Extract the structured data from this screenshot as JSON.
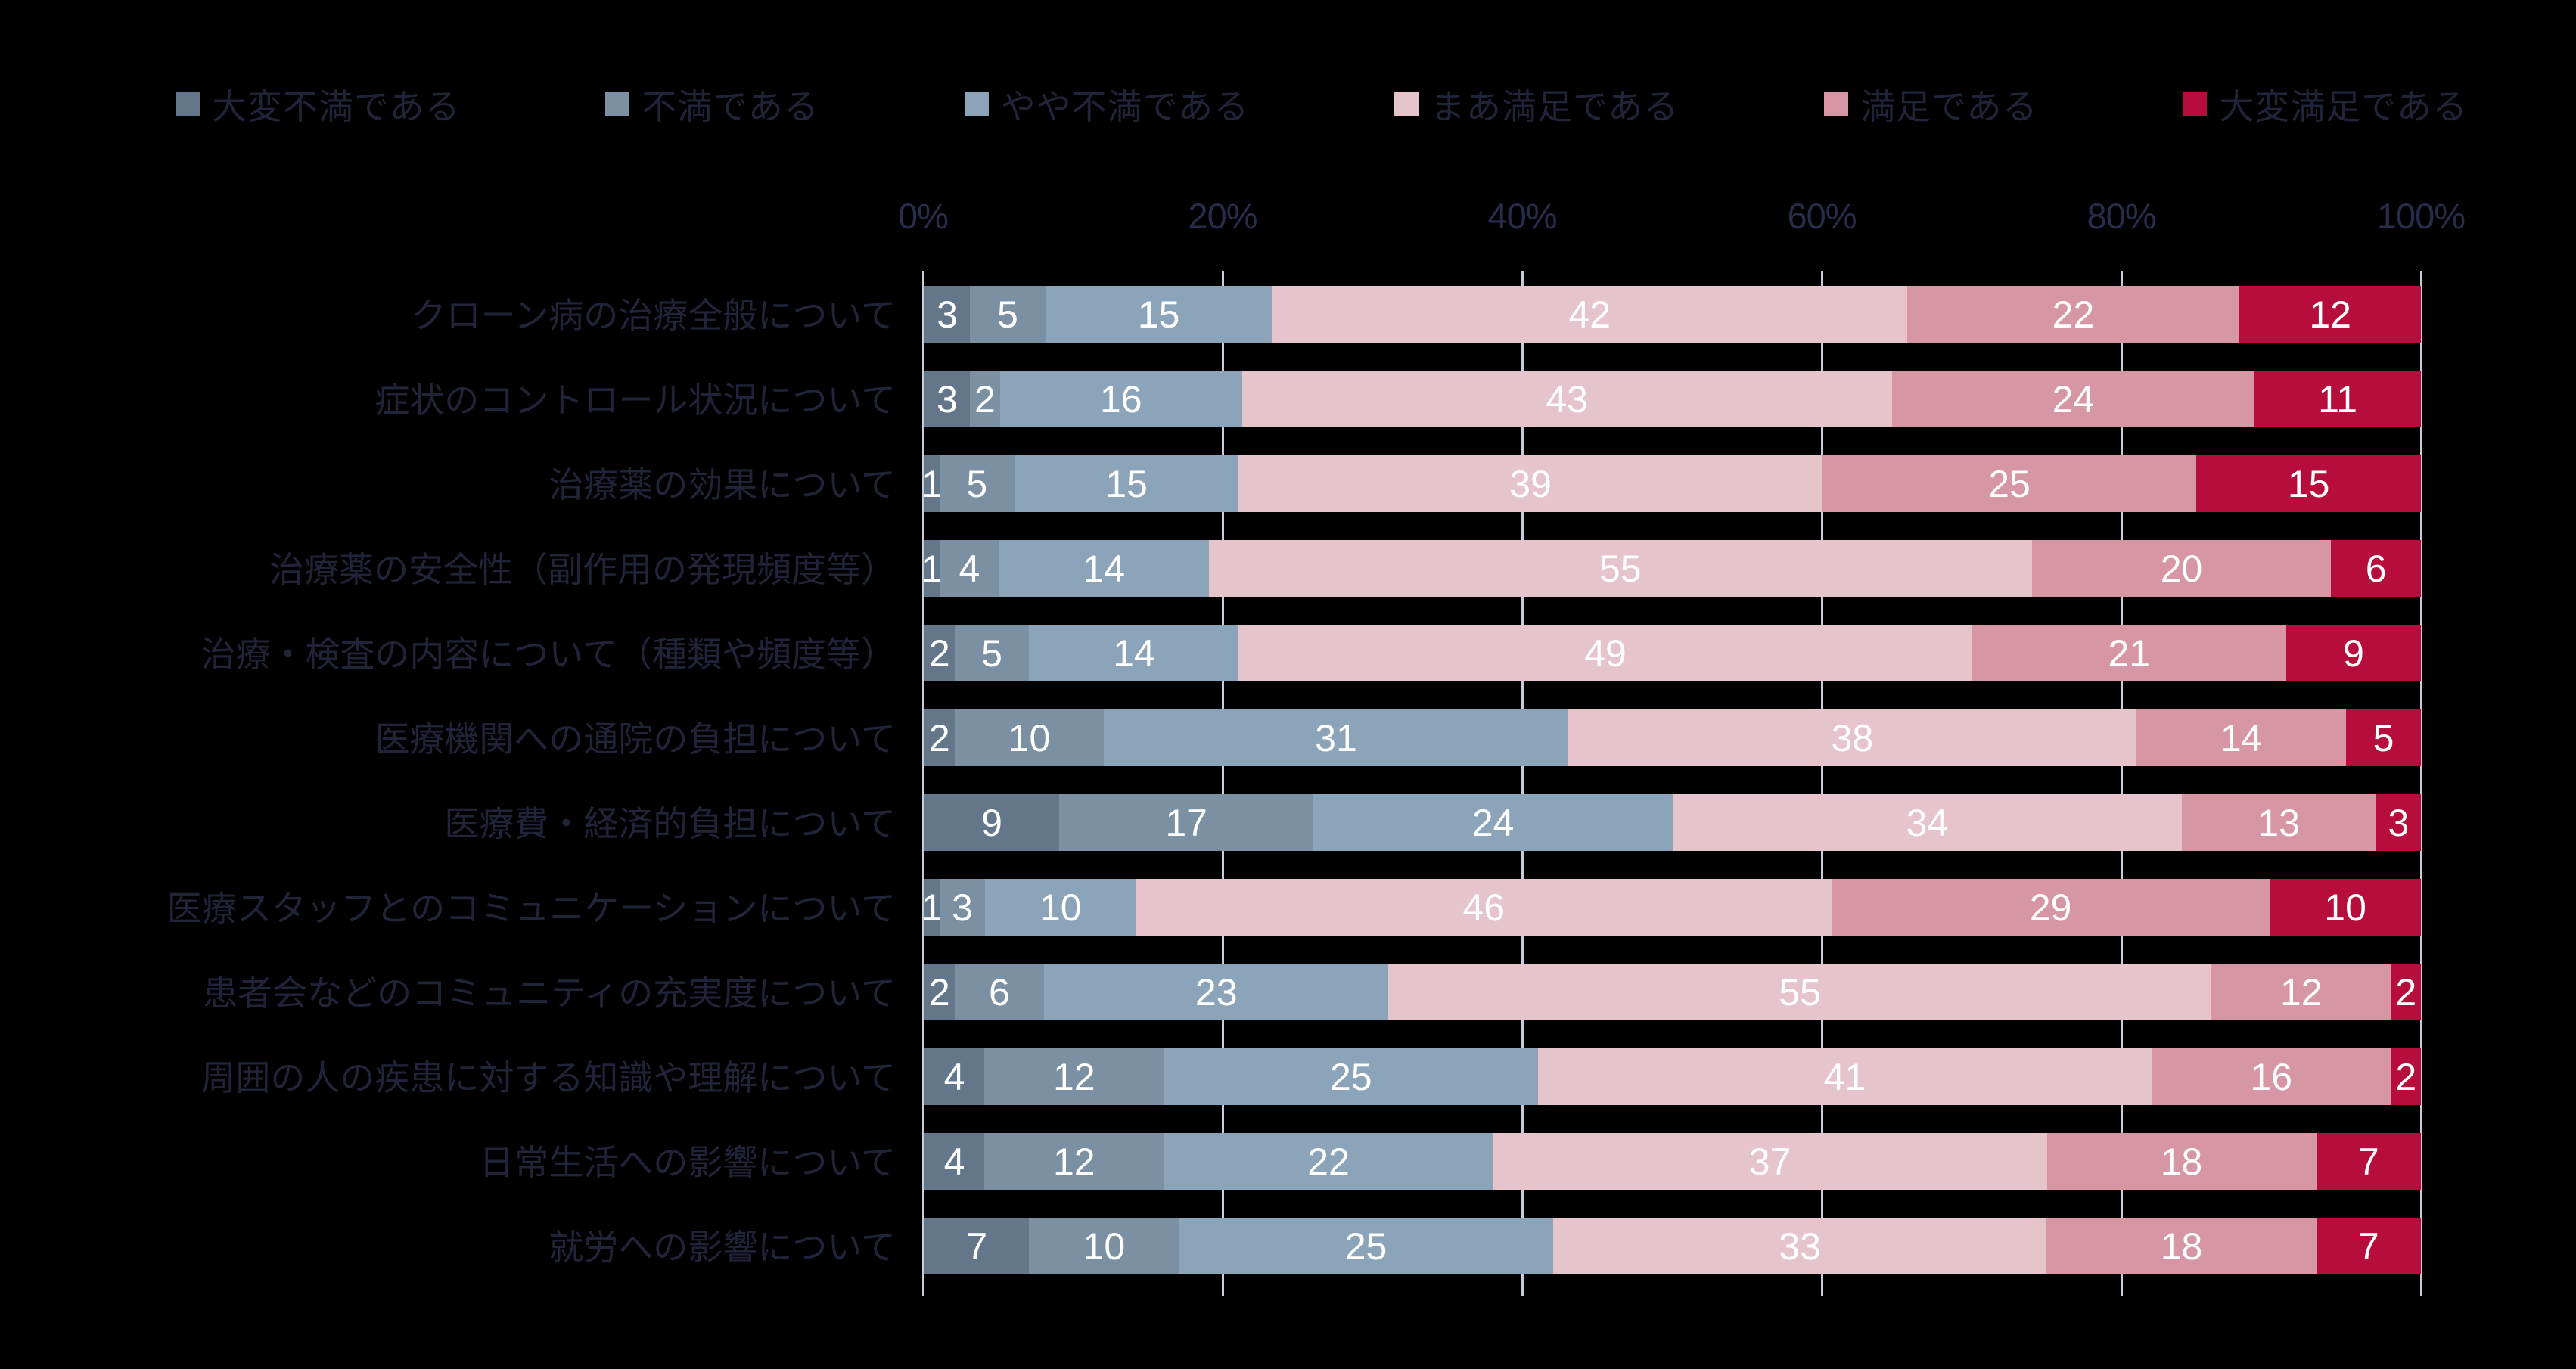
{
  "chart_data": {
    "type": "bar",
    "variant": "horizontal-stacked-100pct",
    "title": "",
    "xlabel": "",
    "ylabel": "",
    "xlim": [
      0,
      100
    ],
    "x_ticks": [
      "0%",
      "20%",
      "40%",
      "60%",
      "80%",
      "100%"
    ],
    "grid": true,
    "legend_position": "top",
    "value_labels": "inside-white",
    "categories": [
      "クローン病の治療全般について",
      "症状のコントロール状況について",
      "治療薬の効果について",
      "治療薬の安全性（副作用の発現頻度等）",
      "治療・検査の内容について（種類や頻度等）",
      "医療機関への通院の負担について",
      "医療費・経済的負担について",
      "医療スタッフとのコミュニケーションについて",
      "患者会などのコミュニティの充実度について",
      "周囲の人の疾患に対する知識や理解について",
      "日常生活への影響について",
      "就労への影響について"
    ],
    "series": [
      {
        "name": "大変不満である",
        "color": "#64778a",
        "values": [
          3,
          3,
          1,
          1,
          2,
          2,
          9,
          1,
          2,
          4,
          4,
          7
        ]
      },
      {
        "name": "不満である",
        "color": "#7b90a3",
        "values": [
          5,
          2,
          5,
          4,
          5,
          10,
          17,
          3,
          6,
          12,
          12,
          10
        ]
      },
      {
        "name": "やや不満である",
        "color": "#8ca4b9",
        "values": [
          15,
          16,
          15,
          14,
          14,
          31,
          24,
          10,
          23,
          25,
          22,
          25
        ]
      },
      {
        "name": "まあ満足である",
        "color": "#e5c4cc",
        "values": [
          42,
          43,
          39,
          55,
          49,
          38,
          34,
          46,
          55,
          41,
          37,
          33
        ]
      },
      {
        "name": "満足である",
        "color": "#d696a4",
        "values": [
          22,
          24,
          25,
          20,
          21,
          14,
          13,
          29,
          12,
          16,
          18,
          18
        ]
      },
      {
        "name": "大変満足である",
        "color": "#b60d3c",
        "values": [
          12,
          11,
          15,
          6,
          9,
          5,
          3,
          10,
          2,
          2,
          7,
          7
        ]
      }
    ]
  },
  "palette": {
    "background": "#000000",
    "label_text": "#1f2438",
    "tick_text": "#272c4a",
    "gridline": "#c8cbdb",
    "value_text": "#ffffff"
  }
}
